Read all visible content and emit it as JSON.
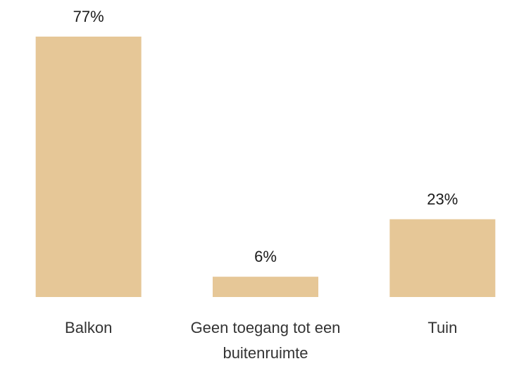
{
  "chart_data": {
    "type": "bar",
    "categories": [
      "Balkon",
      "Geen toegang tot een buitenruimte",
      "Tuin"
    ],
    "values": [
      77,
      6,
      23
    ],
    "value_labels": [
      "77%",
      "6%",
      "23%"
    ],
    "color": "#e6c797"
  }
}
